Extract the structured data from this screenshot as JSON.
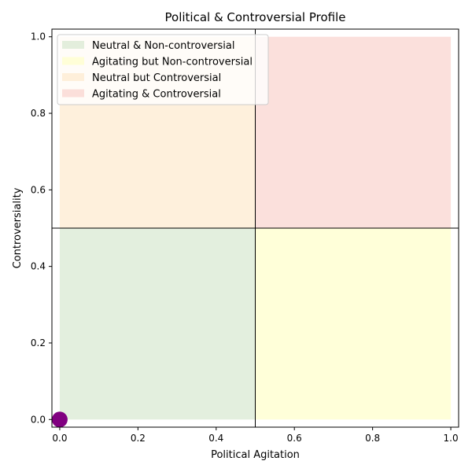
{
  "chart_data": {
    "type": "scatter",
    "title": "Political & Controversial Profile",
    "xlabel": "Political Agitation",
    "ylabel": "Controversiality",
    "xlim": [
      -0.02,
      1.02
    ],
    "ylim": [
      -0.02,
      1.02
    ],
    "xticks": [
      "0.0",
      "0.2",
      "0.4",
      "0.6",
      "0.8",
      "1.0"
    ],
    "yticks": [
      "0.0",
      "0.2",
      "0.4",
      "0.6",
      "0.8",
      "1.0"
    ],
    "threshold_x": 0.5,
    "threshold_y": 0.5,
    "legend_position": "top-left",
    "regions": [
      {
        "name": "Neutral & Non-controversial",
        "x": [
          0,
          0.5
        ],
        "y": [
          0,
          0.5
        ],
        "color": "#d9ead3"
      },
      {
        "name": "Agitating but Non-controversial",
        "x": [
          0.5,
          1.0
        ],
        "y": [
          0,
          0.5
        ],
        "color": "#ffffcc"
      },
      {
        "name": "Neutral but Controversial",
        "x": [
          0,
          0.5
        ],
        "y": [
          0.5,
          1.0
        ],
        "color": "#fdebd0"
      },
      {
        "name": "Agitating & Controversial",
        "x": [
          0.5,
          1.0
        ],
        "y": [
          0.5,
          1.0
        ],
        "color": "#f9d5d0"
      }
    ],
    "points": [
      {
        "x": 0.0,
        "y": 0.0,
        "color": "#800080"
      }
    ]
  }
}
